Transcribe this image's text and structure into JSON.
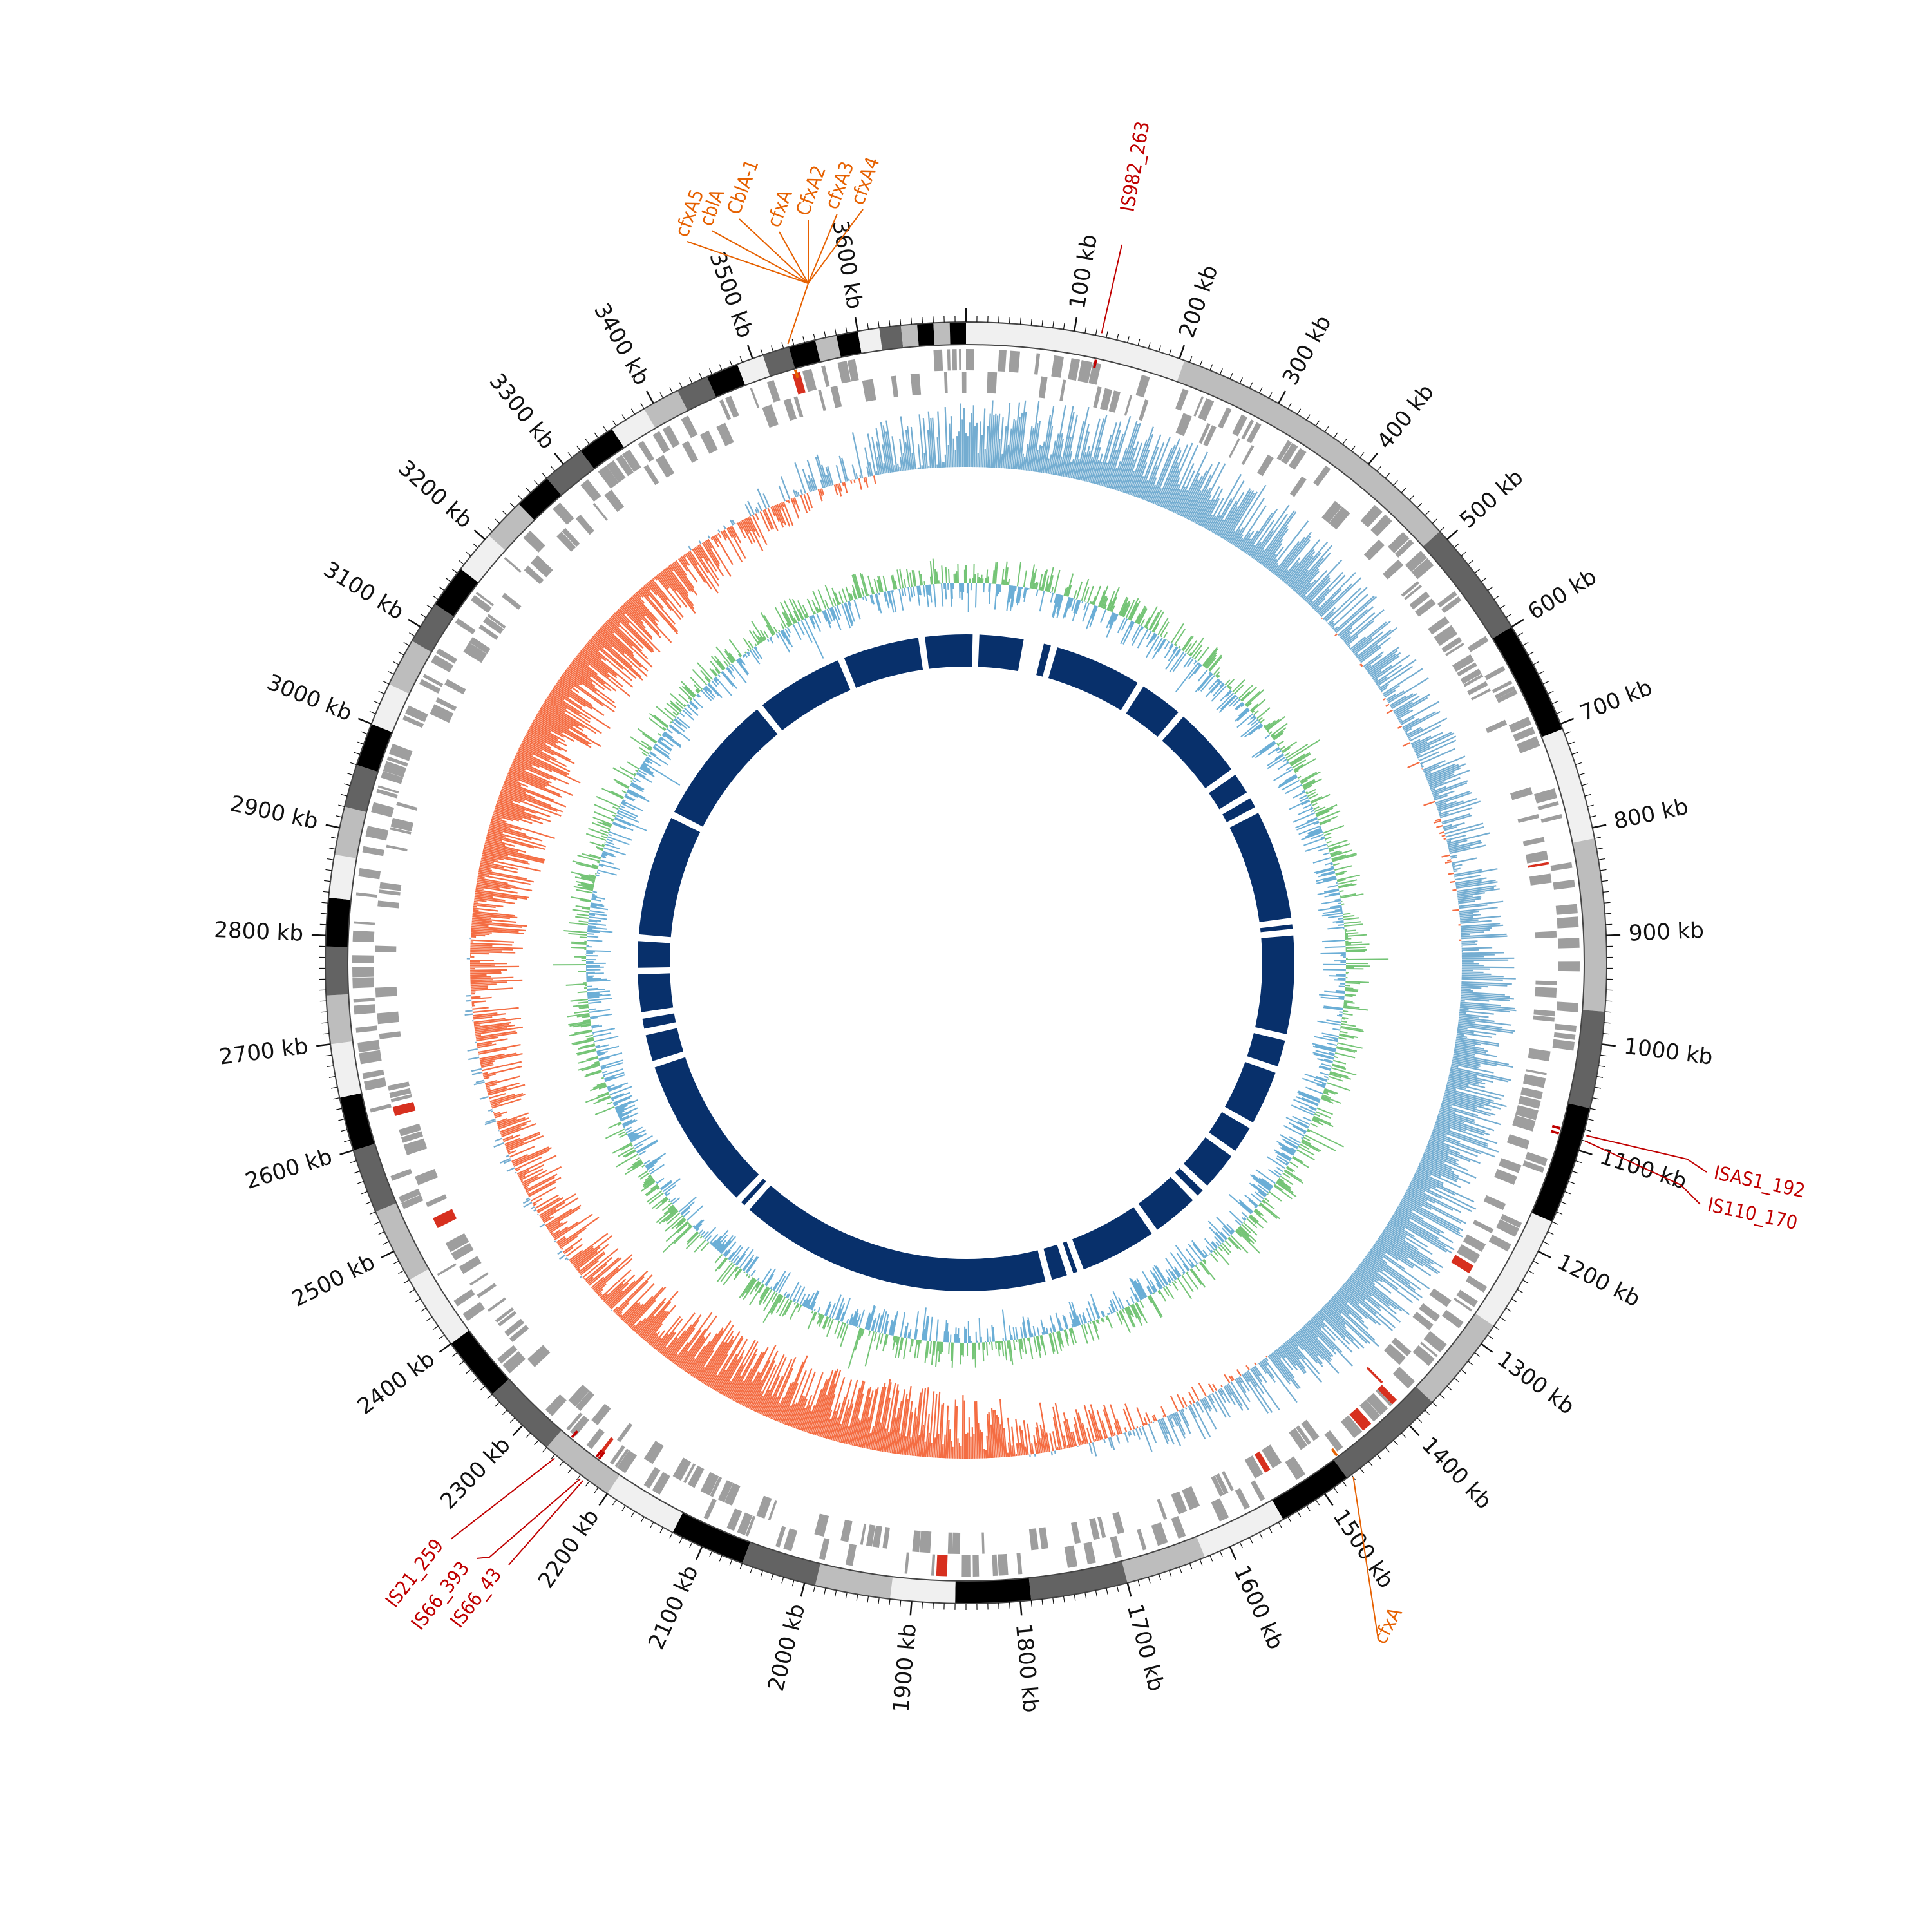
{
  "genome": {
    "total_kb": 3700,
    "tick_unit": "kb"
  },
  "colors": {
    "ideogram": [
      "#f0f0f0",
      "#bdbdbd",
      "#636363",
      "#000000"
    ],
    "gene_blocks": "#9e9e9e",
    "gc_skew_pos": "#74add1",
    "gc_skew_neg": "#f46d43",
    "gc_content_a": "#74c476",
    "gc_content_b": "#6baed6",
    "inner_ring": "#08306b",
    "is_element": "#c00000",
    "antibiotic": "#e66101",
    "tick": "#111111"
  },
  "axis": {
    "ticks_kb": [
      100,
      200,
      300,
      400,
      500,
      600,
      700,
      800,
      900,
      1000,
      1100,
      1200,
      1300,
      1400,
      1500,
      1600,
      1700,
      1800,
      1900,
      2000,
      2100,
      2200,
      2300,
      2400,
      2500,
      2600,
      2700,
      2800,
      2900,
      3000,
      3100,
      3200,
      3300,
      3400,
      3500,
      3600
    ],
    "tick_labels": [
      "100 kb",
      "200 kb",
      "300 kb",
      "400 kb",
      "500 kb",
      "600 kb",
      "700 kb",
      "800 kb",
      "900 kb",
      "1000 kb",
      "1100 kb",
      "1200 kb",
      "1300 kb",
      "1400 kb",
      "1500 kb",
      "1600 kb",
      "1700 kb",
      "1800 kb",
      "1900 kb",
      "2000 kb",
      "2100 kb",
      "2200 kb",
      "2300 kb",
      "2400 kb",
      "2500 kb",
      "2600 kb",
      "2700 kb",
      "2800 kb",
      "2900 kb",
      "3000 kb",
      "3100 kb",
      "3200 kb",
      "3300 kb",
      "3400 kb",
      "3500 kb",
      "3600 kb"
    ]
  },
  "ideogram_bands": [
    {
      "start": 0,
      "end": 205,
      "shade": 0
    },
    {
      "start": 205,
      "end": 490,
      "shade": 1
    },
    {
      "start": 490,
      "end": 600,
      "shade": 2
    },
    {
      "start": 600,
      "end": 705,
      "shade": 3
    },
    {
      "start": 705,
      "end": 810,
      "shade": 0
    },
    {
      "start": 810,
      "end": 970,
      "shade": 1
    },
    {
      "start": 970,
      "end": 1060,
      "shade": 2
    },
    {
      "start": 1060,
      "end": 1170,
      "shade": 3
    },
    {
      "start": 1170,
      "end": 1280,
      "shade": 0
    },
    {
      "start": 1280,
      "end": 1370,
      "shade": 1
    },
    {
      "start": 1370,
      "end": 1475,
      "shade": 2
    },
    {
      "start": 1475,
      "end": 1545,
      "shade": 3
    },
    {
      "start": 1545,
      "end": 1625,
      "shade": 0
    },
    {
      "start": 1625,
      "end": 1700,
      "shade": 1
    },
    {
      "start": 1700,
      "end": 1790,
      "shade": 2
    },
    {
      "start": 1790,
      "end": 1860,
      "shade": 3
    },
    {
      "start": 1860,
      "end": 1920,
      "shade": 0
    },
    {
      "start": 1920,
      "end": 1990,
      "shade": 1
    },
    {
      "start": 1990,
      "end": 2060,
      "shade": 2
    },
    {
      "start": 2060,
      "end": 2130,
      "shade": 3
    },
    {
      "start": 2130,
      "end": 2200,
      "shade": 0
    },
    {
      "start": 2200,
      "end": 2270,
      "shade": 1
    },
    {
      "start": 2270,
      "end": 2340,
      "shade": 2
    },
    {
      "start": 2340,
      "end": 2400,
      "shade": 3
    },
    {
      "start": 2400,
      "end": 2470,
      "shade": 0
    },
    {
      "start": 2470,
      "end": 2540,
      "shade": 1
    },
    {
      "start": 2540,
      "end": 2600,
      "shade": 2
    },
    {
      "start": 2600,
      "end": 2650,
      "shade": 3
    },
    {
      "start": 2650,
      "end": 2700,
      "shade": 0
    },
    {
      "start": 2700,
      "end": 2745,
      "shade": 1
    },
    {
      "start": 2745,
      "end": 2790,
      "shade": 2
    },
    {
      "start": 2790,
      "end": 2835,
      "shade": 3
    },
    {
      "start": 2835,
      "end": 2875,
      "shade": 0
    },
    {
      "start": 2875,
      "end": 2920,
      "shade": 1
    },
    {
      "start": 2920,
      "end": 2960,
      "shade": 2
    },
    {
      "start": 2960,
      "end": 3000,
      "shade": 3
    },
    {
      "start": 3000,
      "end": 3040,
      "shade": 0
    },
    {
      "start": 3040,
      "end": 3085,
      "shade": 1
    },
    {
      "start": 3085,
      "end": 3125,
      "shade": 2
    },
    {
      "start": 3125,
      "end": 3165,
      "shade": 3
    },
    {
      "start": 3165,
      "end": 3205,
      "shade": 0
    },
    {
      "start": 3205,
      "end": 3245,
      "shade": 1
    },
    {
      "start": 3245,
      "end": 3280,
      "shade": 3
    },
    {
      "start": 3280,
      "end": 3320,
      "shade": 2
    },
    {
      "start": 3320,
      "end": 3355,
      "shade": 3
    },
    {
      "start": 3355,
      "end": 3390,
      "shade": 0
    },
    {
      "start": 3390,
      "end": 3425,
      "shade": 1
    },
    {
      "start": 3425,
      "end": 3455,
      "shade": 2
    },
    {
      "start": 3455,
      "end": 3485,
      "shade": 3
    },
    {
      "start": 3485,
      "end": 3510,
      "shade": 0
    },
    {
      "start": 3510,
      "end": 3535,
      "shade": 2
    },
    {
      "start": 3535,
      "end": 3560,
      "shade": 3
    },
    {
      "start": 3560,
      "end": 3580,
      "shade": 1
    },
    {
      "start": 3580,
      "end": 3600,
      "shade": 3
    },
    {
      "start": 3600,
      "end": 3620,
      "shade": 0
    },
    {
      "start": 3620,
      "end": 3640,
      "shade": 2
    },
    {
      "start": 3640,
      "end": 3655,
      "shade": 1
    },
    {
      "start": 3655,
      "end": 3670,
      "shade": 3
    },
    {
      "start": 3670,
      "end": 3685,
      "shade": 1
    },
    {
      "start": 3685,
      "end": 3700,
      "shade": 3
    }
  ],
  "inner_ring_gaps_kb": [
    18,
    110,
    118,
    125,
    135,
    160,
    330,
    420,
    560,
    610,
    640,
    850,
    870,
    1060,
    1120,
    1230,
    1290,
    1370,
    1395,
    1490,
    1640,
    1660,
    1700,
    2280,
    2300,
    2590,
    2650,
    2680,
    2760,
    2820,
    3050,
    3300,
    3470,
    3620
  ],
  "annotations": [
    {
      "kb": 125,
      "label": "IS982_263",
      "kind": "is",
      "side": "right"
    },
    {
      "kb": 1085,
      "label": "ISAS1_192",
      "kind": "is",
      "side": "right"
    },
    {
      "kb": 1090,
      "label": "IS110_170",
      "kind": "is",
      "side": "right"
    },
    {
      "kb": 1470,
      "label": "cfxA",
      "kind": "ab",
      "side": "right"
    },
    {
      "kb": 2258,
      "label": "IS21_259",
      "kind": "is",
      "side": "left"
    },
    {
      "kb": 2228,
      "label": "IS66_393",
      "kind": "is",
      "side": "left"
    },
    {
      "kb": 2225,
      "label": "IS66_43",
      "kind": "is",
      "side": "left"
    },
    {
      "kb": 3535,
      "label": "cfxA5",
      "kind": "ab",
      "side": "left"
    },
    {
      "kb": 3535,
      "label": "cblA",
      "kind": "ab",
      "side": "left"
    },
    {
      "kb": 3535,
      "label": "CblA-1",
      "kind": "ab",
      "side": "left"
    },
    {
      "kb": 3535,
      "label": "cfxA",
      "kind": "ab",
      "side": "left"
    },
    {
      "kb": 3535,
      "label": "CfxA2",
      "kind": "ab",
      "side": "left"
    },
    {
      "kb": 3535,
      "label": "cfxA3",
      "kind": "ab",
      "side": "left"
    },
    {
      "kb": 3535,
      "label": "cfxA4",
      "kind": "ab",
      "side": "left"
    }
  ]
}
